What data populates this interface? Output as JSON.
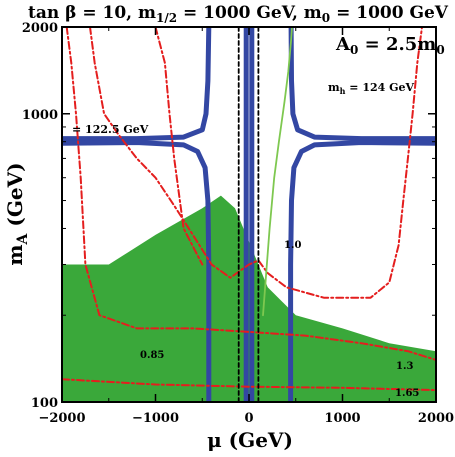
{
  "chart_data": {
    "type": "contour",
    "title": {
      "prefix": "tan β = 10, m",
      "m_half_sub": "1/2",
      "middle": " = 1000 GeV, m",
      "m0_sub": "0",
      "suffix": " = 1000 GeV"
    },
    "inset_label": {
      "main": "A",
      "sub": "0",
      "rest": " = 2.5m",
      "sub2": "0"
    },
    "xlabel": "μ (GeV)",
    "ylabel_main": "m",
    "ylabel_sub": "A",
    "ylabel_rest": " (GeV)",
    "xlim": [
      -2000,
      2000
    ],
    "ylim": [
      100,
      2000
    ],
    "x_ticks": [
      {
        "value": -2000,
        "label": "−2000"
      },
      {
        "value": -1000,
        "label": "−1000"
      },
      {
        "value": 0,
        "label": "0"
      },
      {
        "value": 1000,
        "label": "1000"
      },
      {
        "value": 2000,
        "label": "2000"
      }
    ],
    "y_ticks": [
      {
        "value": 100,
        "label": "100"
      },
      {
        "value": 1000,
        "label": "1000"
      },
      {
        "value": 2000,
        "label": "2000"
      }
    ],
    "colors": {
      "green_region": "#3aa83a",
      "blue_contour": "#3347a3",
      "red_contour": "#e41e1e",
      "green_contour": "#7ec850",
      "black_lines": "#000000"
    },
    "annotations": {
      "mh_left": "= 122.5 GeV",
      "mh_right_main": "m",
      "mh_right_sub": "h",
      "mh_right_rest": " = 124 GeV",
      "green_1_0": "1.0",
      "green_0_85": "0.85",
      "red_1_3": "1.3",
      "red_1_65": "1.65"
    },
    "regions": {
      "green_filled": [
        [
          -2000,
          300
        ],
        [
          -1500,
          300
        ],
        [
          -1000,
          380
        ],
        [
          -500,
          470
        ],
        [
          -300,
          520
        ],
        [
          -150,
          470
        ],
        [
          0,
          360
        ],
        [
          200,
          250
        ],
        [
          500,
          200
        ],
        [
          1000,
          180
        ],
        [
          1500,
          160
        ],
        [
          2000,
          150
        ],
        [
          2000,
          100
        ],
        [
          -2000,
          100
        ]
      ]
    },
    "series": [
      {
        "style": "blue",
        "points": [
          [
            -2000,
            820
          ],
          [
            -1200,
            820
          ],
          [
            -700,
            830
          ],
          [
            -500,
            880
          ],
          [
            -460,
            1000
          ],
          [
            -440,
            1300
          ],
          [
            -430,
            2000
          ]
        ]
      },
      {
        "style": "blue",
        "points": [
          [
            -2000,
            790
          ],
          [
            -1200,
            795
          ],
          [
            -700,
            780
          ],
          [
            -550,
            740
          ],
          [
            -470,
            650
          ],
          [
            -440,
            500
          ],
          [
            -430,
            300
          ],
          [
            -430,
            100
          ]
        ]
      },
      {
        "style": "blue",
        "points": [
          [
            2000,
            820
          ],
          [
            1200,
            820
          ],
          [
            700,
            830
          ],
          [
            520,
            880
          ],
          [
            470,
            1000
          ],
          [
            455,
            1300
          ],
          [
            450,
            2000
          ]
        ]
      },
      {
        "style": "blue",
        "points": [
          [
            2000,
            790
          ],
          [
            1200,
            795
          ],
          [
            700,
            780
          ],
          [
            560,
            740
          ],
          [
            480,
            650
          ],
          [
            455,
            500
          ],
          [
            445,
            300
          ],
          [
            445,
            100
          ]
        ]
      },
      {
        "style": "blue",
        "points": [
          [
            -30,
            2000
          ],
          [
            -30,
            100
          ]
        ]
      },
      {
        "style": "blue",
        "points": [
          [
            30,
            2000
          ],
          [
            30,
            100
          ]
        ]
      },
      {
        "style": "red",
        "points": [
          [
            -1700,
            2000
          ],
          [
            -1650,
            1500
          ],
          [
            -1550,
            1000
          ],
          [
            -1400,
            850
          ],
          [
            -1200,
            700
          ],
          [
            -1000,
            600
          ],
          [
            -800,
            480
          ],
          [
            -600,
            380
          ],
          [
            -400,
            300
          ],
          [
            -200,
            270
          ],
          [
            0,
            300
          ],
          [
            100,
            310
          ],
          [
            200,
            280
          ],
          [
            400,
            250
          ],
          [
            800,
            230
          ],
          [
            1300,
            230
          ],
          [
            1500,
            260
          ],
          [
            1600,
            350
          ],
          [
            1650,
            500
          ],
          [
            1700,
            700
          ],
          [
            1750,
            1000
          ],
          [
            1800,
            1500
          ],
          [
            1850,
            2000
          ]
        ]
      },
      {
        "style": "red",
        "points": [
          [
            -1950,
            2000
          ],
          [
            -1900,
            1500
          ],
          [
            -1850,
            1000
          ],
          [
            -1800,
            600
          ],
          [
            -1750,
            300
          ],
          [
            -1600,
            200
          ],
          [
            -1200,
            180
          ],
          [
            -600,
            180
          ],
          [
            0,
            175
          ],
          [
            600,
            170
          ],
          [
            1200,
            160
          ],
          [
            1700,
            150
          ],
          [
            2000,
            140
          ]
        ]
      },
      {
        "style": "red",
        "points": [
          [
            -1000,
            2000
          ],
          [
            -900,
            1500
          ],
          [
            -850,
            1000
          ],
          [
            -800,
            700
          ],
          [
            -700,
            400
          ],
          [
            -500,
            300
          ]
        ]
      },
      {
        "style": "red",
        "points": [
          [
            -2000,
            120
          ],
          [
            -1000,
            115
          ],
          [
            0,
            113
          ],
          [
            1000,
            112
          ],
          [
            2000,
            110
          ]
        ]
      },
      {
        "style": "green",
        "points": [
          [
            150,
            200
          ],
          [
            220,
            400
          ],
          [
            270,
            600
          ],
          [
            320,
            800
          ],
          [
            380,
            1100
          ],
          [
            420,
            1400
          ],
          [
            450,
            1800
          ],
          [
            460,
            2000
          ]
        ]
      },
      {
        "style": "black",
        "points": [
          [
            -110,
            2000
          ],
          [
            -110,
            100
          ]
        ]
      },
      {
        "style": "black",
        "points": [
          [
            100,
            2000
          ],
          [
            100,
            100
          ]
        ]
      }
    ]
  }
}
